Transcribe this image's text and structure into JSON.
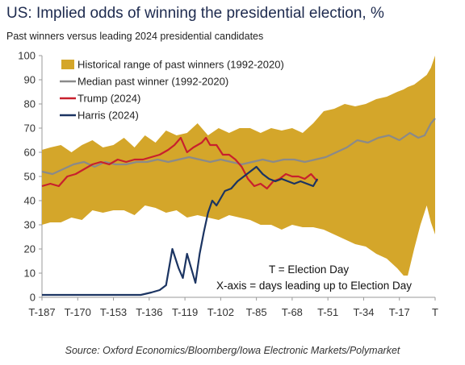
{
  "chart_data": {
    "type": "area",
    "title": "US: Implied odds of winning the presidential election, %",
    "subtitle": "Past winners versus leading 2024 presidential candidates",
    "source": "Source: Oxford Economics/Bloomberg/Iowa Electronic Markets/Polymarket",
    "notes": [
      "T = Election Day",
      "X-axis = days leading up to Election Day"
    ],
    "ylim": [
      0,
      100
    ],
    "yticks": [
      0,
      10,
      20,
      30,
      40,
      50,
      60,
      70,
      80,
      90,
      100
    ],
    "xlim": [
      -187,
      0
    ],
    "xticks": [
      -187,
      -170,
      -153,
      -136,
      -119,
      -102,
      -85,
      -68,
      -51,
      -34,
      -17,
      0
    ],
    "xtick_labels": [
      "T-187",
      "T-170",
      "T-153",
      "T-136",
      "T-119",
      "T-102",
      "T-85",
      "T-68",
      "T-51",
      "T-34",
      "T-17",
      "T"
    ],
    "grid": false,
    "legend_position": "top-left",
    "colors": {
      "range": "#d4a62a",
      "median": "#8a8a8a",
      "trump": "#c8202d",
      "harris": "#1b3462"
    },
    "series": [
      {
        "name": "Historical range of past winners (1992-2020)",
        "kind": "band",
        "x": [
          -187,
          -183,
          -178,
          -173,
          -168,
          -163,
          -158,
          -153,
          -148,
          -143,
          -138,
          -133,
          -128,
          -123,
          -118,
          -113,
          -108,
          -103,
          -98,
          -93,
          -88,
          -83,
          -78,
          -73,
          -68,
          -63,
          -58,
          -53,
          -48,
          -43,
          -38,
          -33,
          -28,
          -23,
          -18,
          -15,
          -13,
          -10,
          -7,
          -4,
          -2,
          0
        ],
        "upper": [
          61,
          62,
          63,
          60,
          63,
          65,
          62,
          63,
          66,
          62,
          67,
          64,
          69,
          67,
          68,
          72,
          67,
          70,
          68,
          70,
          70,
          68,
          70,
          69,
          70,
          68,
          72,
          77,
          78,
          80,
          79,
          80,
          82,
          83,
          85,
          86,
          87,
          88,
          90,
          92,
          95,
          100
        ],
        "lower": [
          30,
          31,
          31,
          33,
          32,
          36,
          35,
          36,
          36,
          34,
          38,
          37,
          35,
          36,
          33,
          34,
          33,
          32,
          34,
          33,
          32,
          30,
          30,
          28,
          30,
          29,
          29,
          28,
          26,
          24,
          22,
          21,
          18,
          16,
          12,
          9,
          9,
          20,
          30,
          38,
          31,
          26
        ]
      },
      {
        "name": "Median past winner (1992-2020)",
        "x": [
          -187,
          -182,
          -177,
          -172,
          -167,
          -162,
          -157,
          -152,
          -147,
          -142,
          -137,
          -132,
          -127,
          -122,
          -117,
          -112,
          -107,
          -102,
          -97,
          -92,
          -87,
          -82,
          -77,
          -72,
          -67,
          -62,
          -57,
          -52,
          -47,
          -42,
          -37,
          -32,
          -27,
          -22,
          -17,
          -12,
          -8,
          -5,
          -2,
          0
        ],
        "values": [
          52,
          51,
          53,
          55,
          56,
          54,
          56,
          55,
          55,
          56,
          56,
          57,
          56,
          57,
          58,
          57,
          56,
          57,
          56,
          55,
          56,
          57,
          56,
          57,
          57,
          56,
          57,
          58,
          60,
          62,
          65,
          64,
          66,
          67,
          65,
          68,
          66,
          67,
          72,
          74
        ]
      },
      {
        "name": "Trump (2024)",
        "x": [
          -187,
          -183,
          -179,
          -175,
          -171,
          -167,
          -163,
          -159,
          -155,
          -151,
          -147,
          -143,
          -139,
          -135,
          -131,
          -127,
          -124,
          -121,
          -118,
          -115,
          -113,
          -111,
          -109,
          -107,
          -104,
          -101,
          -98,
          -95,
          -92,
          -89,
          -86,
          -83,
          -80,
          -77,
          -74,
          -71,
          -68,
          -65,
          -62,
          -59,
          -56
        ],
        "values": [
          46,
          47,
          46,
          50,
          51,
          53,
          55,
          56,
          55,
          57,
          56,
          57,
          57,
          58,
          59,
          61,
          63,
          66,
          60,
          62,
          63,
          64,
          66,
          63,
          63,
          59,
          59,
          57,
          54,
          49,
          46,
          47,
          45,
          48,
          49,
          51,
          50,
          50,
          49,
          51,
          48
        ]
      },
      {
        "name": "Harris (2024)",
        "x": [
          -187,
          -180,
          -170,
          -160,
          -150,
          -140,
          -135,
          -131,
          -128,
          -125,
          -122,
          -120,
          -118,
          -116,
          -114,
          -112,
          -110,
          -108,
          -106,
          -104,
          -102,
          -100,
          -97,
          -94,
          -91,
          -88,
          -85,
          -82,
          -79,
          -76,
          -73,
          -70,
          -67,
          -64,
          -61,
          -58,
          -56
        ],
        "values": [
          1,
          1,
          1,
          1,
          1,
          1,
          2,
          3,
          5,
          20,
          12,
          8,
          18,
          12,
          6,
          18,
          27,
          35,
          40,
          38,
          41,
          44,
          45,
          48,
          50,
          52,
          54,
          51,
          49,
          48,
          49,
          48,
          47,
          48,
          47,
          46,
          49
        ]
      }
    ]
  }
}
